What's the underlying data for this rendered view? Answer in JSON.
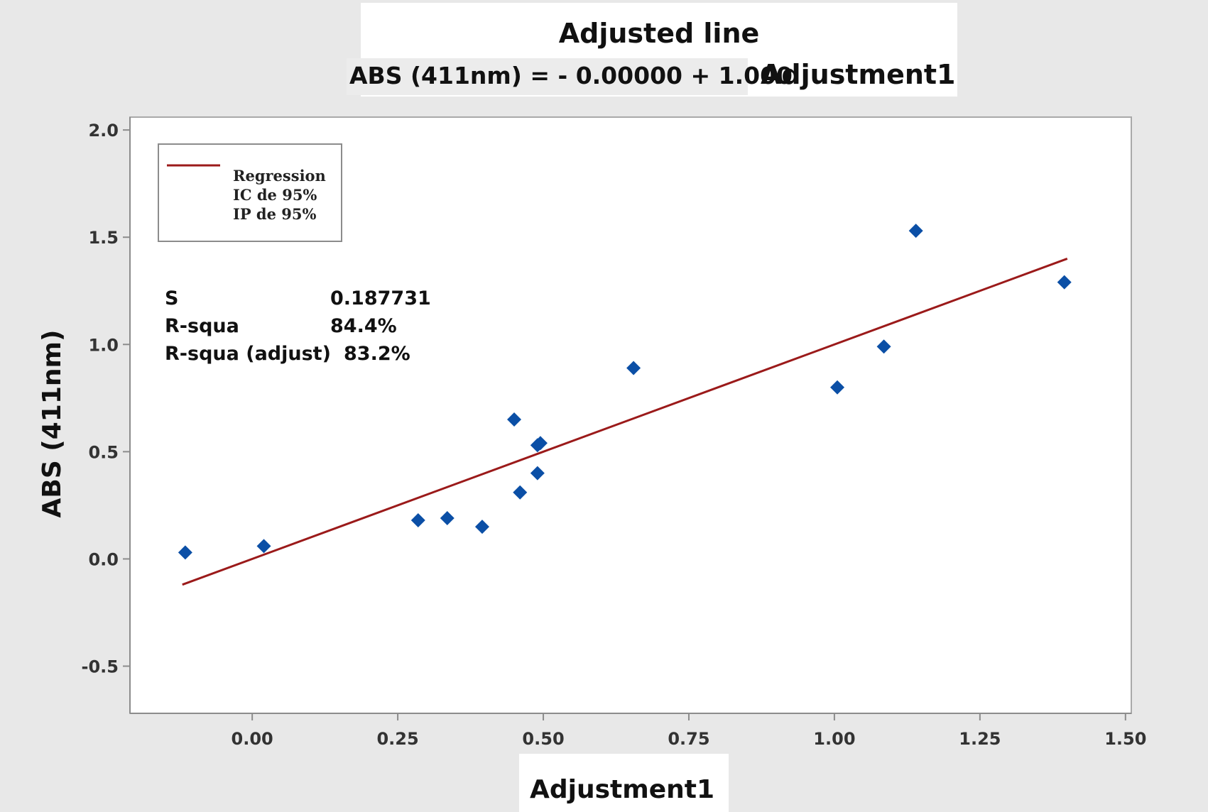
{
  "chart_data": {
    "type": "scatter",
    "title": "Adjusted line",
    "equation": {
      "text": "ABS (411nm) = - 0.00000 + 1.000",
      "variable": "Adjustment1"
    },
    "xlabel": "Adjustment1",
    "ylabel": "ABS (411nm)",
    "xlim": [
      -0.21,
      1.51
    ],
    "ylim": [
      -0.72,
      2.06
    ],
    "xticks": [
      0.0,
      0.25,
      0.5,
      0.75,
      1.0,
      1.25,
      1.5
    ],
    "xtick_labels": [
      "0.00",
      "0.25",
      "0.50",
      "0.75",
      "1.00",
      "1.25",
      "1.50"
    ],
    "yticks": [
      -0.5,
      0.0,
      0.5,
      1.0,
      1.5,
      2.0
    ],
    "ytick_labels": [
      "-0.5",
      "0.0",
      "0.5",
      "1.0",
      "1.5",
      "2.0"
    ],
    "grid": false,
    "legend_position": "top-left",
    "legend": {
      "entries": [
        "Regression",
        "IC de 95%",
        "IP de 95%"
      ]
    },
    "stats": [
      {
        "label": "S",
        "value": "0.187731"
      },
      {
        "label": "R-squa",
        "value": "84.4%"
      },
      {
        "label": "R-squa (adjust)",
        "value": "83.2%"
      }
    ],
    "series": [
      {
        "name": "Regression",
        "kind": "line",
        "color": "#9b1a1a",
        "x": [
          -0.12,
          1.4
        ],
        "y": [
          -0.12,
          1.4
        ]
      },
      {
        "kind": "scatter",
        "color": "#0b4fa6",
        "x": [
          -0.115,
          0.02,
          0.285,
          0.335,
          0.395,
          0.45,
          0.46,
          0.49,
          0.495,
          0.49,
          0.655,
          1.005,
          1.085,
          1.14,
          1.395
        ],
        "y": [
          0.03,
          0.06,
          0.18,
          0.19,
          0.15,
          0.65,
          0.31,
          0.53,
          0.54,
          0.4,
          0.89,
          0.8,
          0.99,
          1.53,
          1.29
        ]
      }
    ]
  }
}
